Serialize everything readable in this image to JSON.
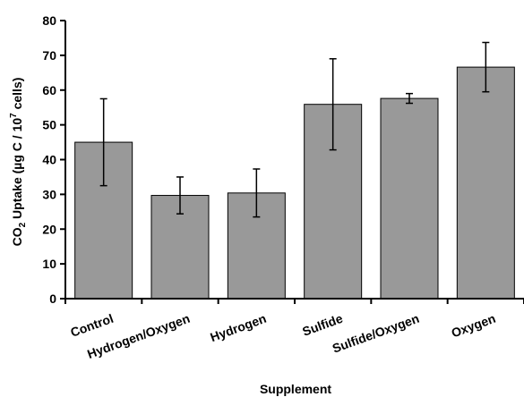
{
  "chart_data": {
    "type": "bar",
    "categories": [
      "Control",
      "Hydrogen/Oxygen",
      "Hydrogen",
      "Sulfide",
      "Sulfide/Oxygen",
      "Oxygen"
    ],
    "values": [
      45.0,
      29.7,
      30.4,
      55.9,
      57.6,
      66.6
    ],
    "error": [
      12.5,
      5.3,
      6.9,
      13.1,
      1.4,
      7.1
    ],
    "xlabel": "Supplement",
    "ylabel": {
      "p1": "CO",
      "sub": "2",
      "p2": " Uptake (µg C / 10",
      "sup": "7",
      "p3": " cells)"
    },
    "ylim": [
      0,
      80
    ],
    "yticks": [
      0,
      10,
      20,
      30,
      40,
      50,
      60,
      70,
      80
    ],
    "bar_color": "#999999",
    "grid": false,
    "legend": "none"
  }
}
